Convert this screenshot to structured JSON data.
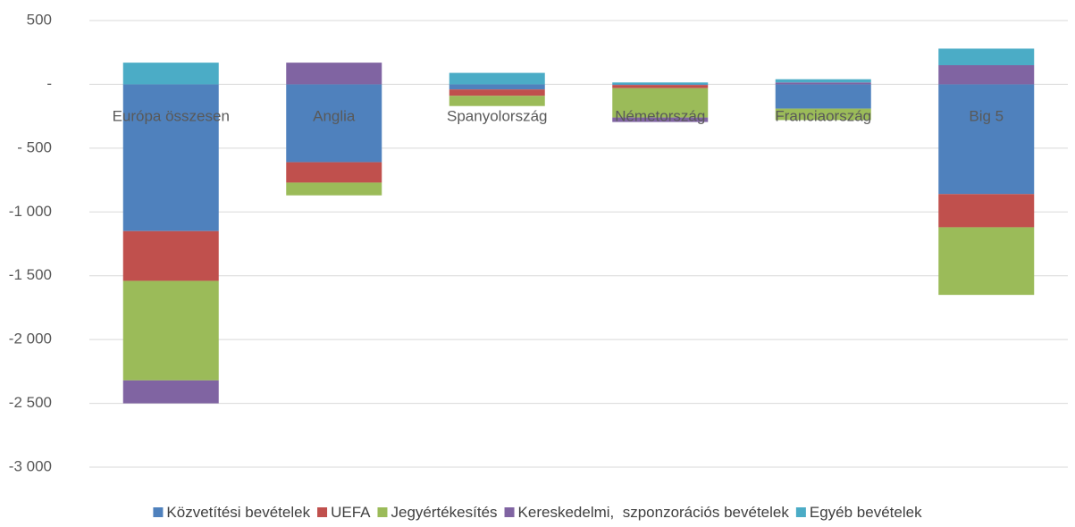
{
  "chart_data": {
    "type": "stacked_bar",
    "categories": [
      "Európa összesen",
      "Anglia",
      "Spanyolország",
      "Németország",
      "Franciaország",
      "Big 5"
    ],
    "series": [
      {
        "name": "Közvetítési bevételek",
        "color": "#4f81bd",
        "values": [
          -1150,
          -610,
          -40,
          -5,
          -190,
          -860
        ]
      },
      {
        "name": "UEFA",
        "color": "#c0504d",
        "values": [
          -390,
          -160,
          -50,
          -25,
          0,
          -260
        ]
      },
      {
        "name": "Jegyértékesítés",
        "color": "#9bbb59",
        "values": [
          -780,
          -100,
          -80,
          -230,
          -90,
          -530
        ]
      },
      {
        "name": "Kereskedelmi,  szponzorációs bevételek",
        "color": "#8064a2",
        "values": [
          -180,
          170,
          0,
          -35,
          15,
          150
        ]
      },
      {
        "name": "Egyéb bevételek",
        "color": "#4bacc6",
        "values": [
          170,
          0,
          90,
          15,
          25,
          130
        ]
      }
    ],
    "ylim": [
      -3000,
      500
    ],
    "yticks": [
      {
        "value": -3000,
        "label": "-3 000"
      },
      {
        "value": -2500,
        "label": "-2 500"
      },
      {
        "value": -2000,
        "label": "-2 000"
      },
      {
        "value": -1500,
        "label": "-1 500"
      },
      {
        "value": -1000,
        "label": "-1 000"
      },
      {
        "value": -500,
        "label": "- 500"
      },
      {
        "value": 0,
        "label": "-"
      },
      500
    ],
    "grid": true,
    "legend": "bottom"
  }
}
